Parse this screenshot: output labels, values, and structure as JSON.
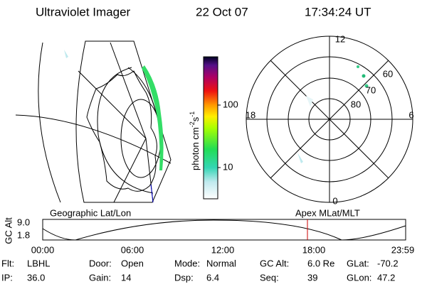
{
  "header": {
    "instrument": "Ultraviolet Imager",
    "date": "22 Oct 07",
    "time": "17:34:24 UT"
  },
  "colorbar": {
    "label": "photon cm",
    "exp1": "-2",
    "unit2": "s",
    "exp2": "-1",
    "ticks": [
      "100",
      "10"
    ]
  },
  "polar_plot": {
    "mlt_labels": [
      "12",
      "18",
      "6",
      "0"
    ],
    "lat_labels": [
      "60",
      "70",
      "80"
    ]
  },
  "orbit_plot": {
    "y_axis_label": "GC Alt",
    "yticks": [
      "9.0",
      "1.8"
    ],
    "left_title": "Geographic Lat/Lon",
    "right_title": "Apex MLat/MLT",
    "xticks": [
      "00:00",
      "06:00",
      "12:00",
      "18:00",
      "23:59"
    ]
  },
  "info": {
    "rows": [
      [
        [
          "Flt:",
          "LBHL"
        ],
        [
          "Door:",
          "Open"
        ],
        [
          "Mode:",
          "Normal"
        ],
        [
          "GC Alt:",
          "6.0 Re"
        ],
        [
          "GLat:",
          "-70.2"
        ]
      ],
      [
        [
          "IP:",
          "36.0"
        ],
        [
          "Gain:",
          "14"
        ],
        [
          "Dsp:",
          "6.4"
        ],
        [
          "Seq:",
          "39"
        ],
        [
          "GLon:",
          "47.2"
        ]
      ]
    ]
  }
}
